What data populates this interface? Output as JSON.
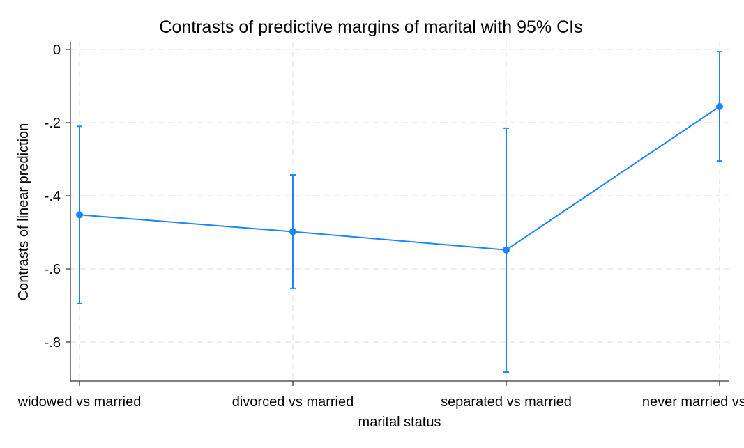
{
  "chart_data": {
    "type": "line",
    "title": "Contrasts of predictive margins of marital with 95% CIs",
    "xlabel": "marital status",
    "ylabel": "Contrasts of linear prediction",
    "categories": [
      "widowed vs married",
      "divorced vs married",
      "separated vs married",
      "never married vs married"
    ],
    "series": [
      {
        "values": [
          -0.452,
          -0.498,
          -0.548,
          -0.156
        ],
        "ci_low": [
          -0.695,
          -0.653,
          -0.882,
          -0.305
        ],
        "ci_high": [
          -0.21,
          -0.343,
          -0.215,
          -0.006
        ],
        "color": "#1a85ff"
      }
    ],
    "ylim": [
      -0.9,
      0
    ],
    "yticks": [
      0,
      -0.2,
      -0.4,
      -0.6,
      -0.8
    ],
    "ytick_labels": [
      "0",
      "-.2",
      "-.4",
      "-.6",
      "-.8"
    ],
    "grid": true,
    "legend": "none"
  }
}
